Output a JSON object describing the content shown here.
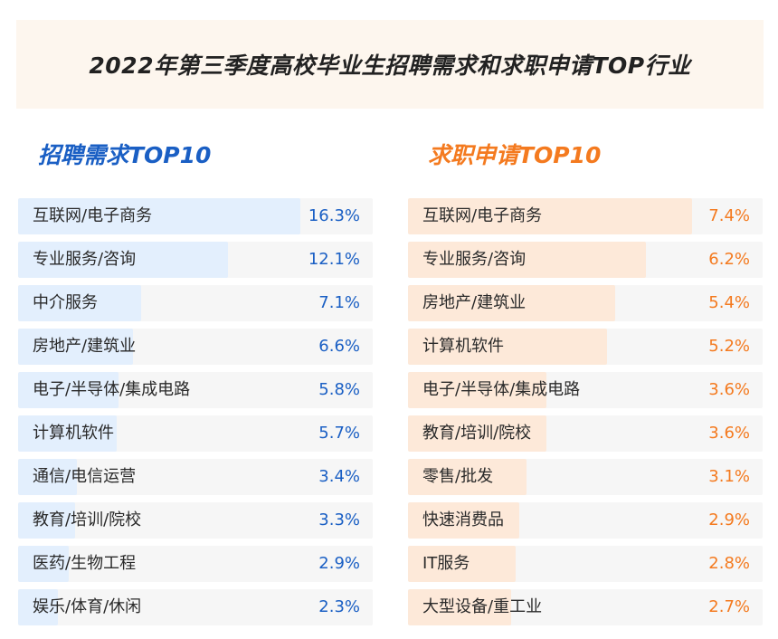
{
  "title": "2022年第三季度高校毕业生招聘需求和求职申请TOP行业",
  "chart_data": [
    {
      "type": "bar",
      "title": "招聘需求TOP10",
      "unit": "%",
      "color": "#1a5fc4",
      "bar_color": "#e3effd",
      "categories": [
        "互联网/电子商务",
        "专业服务/咨询",
        "中介服务",
        "房地产/建筑业",
        "电子/半导体/集成电路",
        "计算机软件",
        "通信/电信运营",
        "教育/培训/院校",
        "医药/生物工程",
        "娱乐/体育/休闲"
      ],
      "values": [
        16.3,
        12.1,
        7.1,
        6.6,
        5.8,
        5.7,
        3.4,
        3.3,
        2.9,
        2.3
      ],
      "value_labels": [
        "16.3%",
        "12.1%",
        "7.1%",
        "6.6%",
        "5.8%",
        "5.7%",
        "3.4%",
        "3.3%",
        "2.9%",
        "2.3%"
      ]
    },
    {
      "type": "bar",
      "title": "求职申请TOP10",
      "unit": "%",
      "color": "#f47a1f",
      "bar_color": "#fde9d9",
      "categories": [
        "互联网/电子商务",
        "专业服务/咨询",
        "房地产/建筑业",
        "计算机软件",
        "电子/半导体/集成电路",
        "教育/培训/院校",
        "零售/批发",
        "快速消费品",
        "IT服务",
        "大型设备/重工业"
      ],
      "values": [
        7.4,
        6.2,
        5.4,
        5.2,
        3.6,
        3.6,
        3.1,
        2.9,
        2.8,
        2.7
      ],
      "value_labels": [
        "7.4%",
        "6.2%",
        "5.4%",
        "5.2%",
        "3.6%",
        "3.6%",
        "3.1%",
        "2.9%",
        "2.8%",
        "2.7%"
      ]
    }
  ]
}
